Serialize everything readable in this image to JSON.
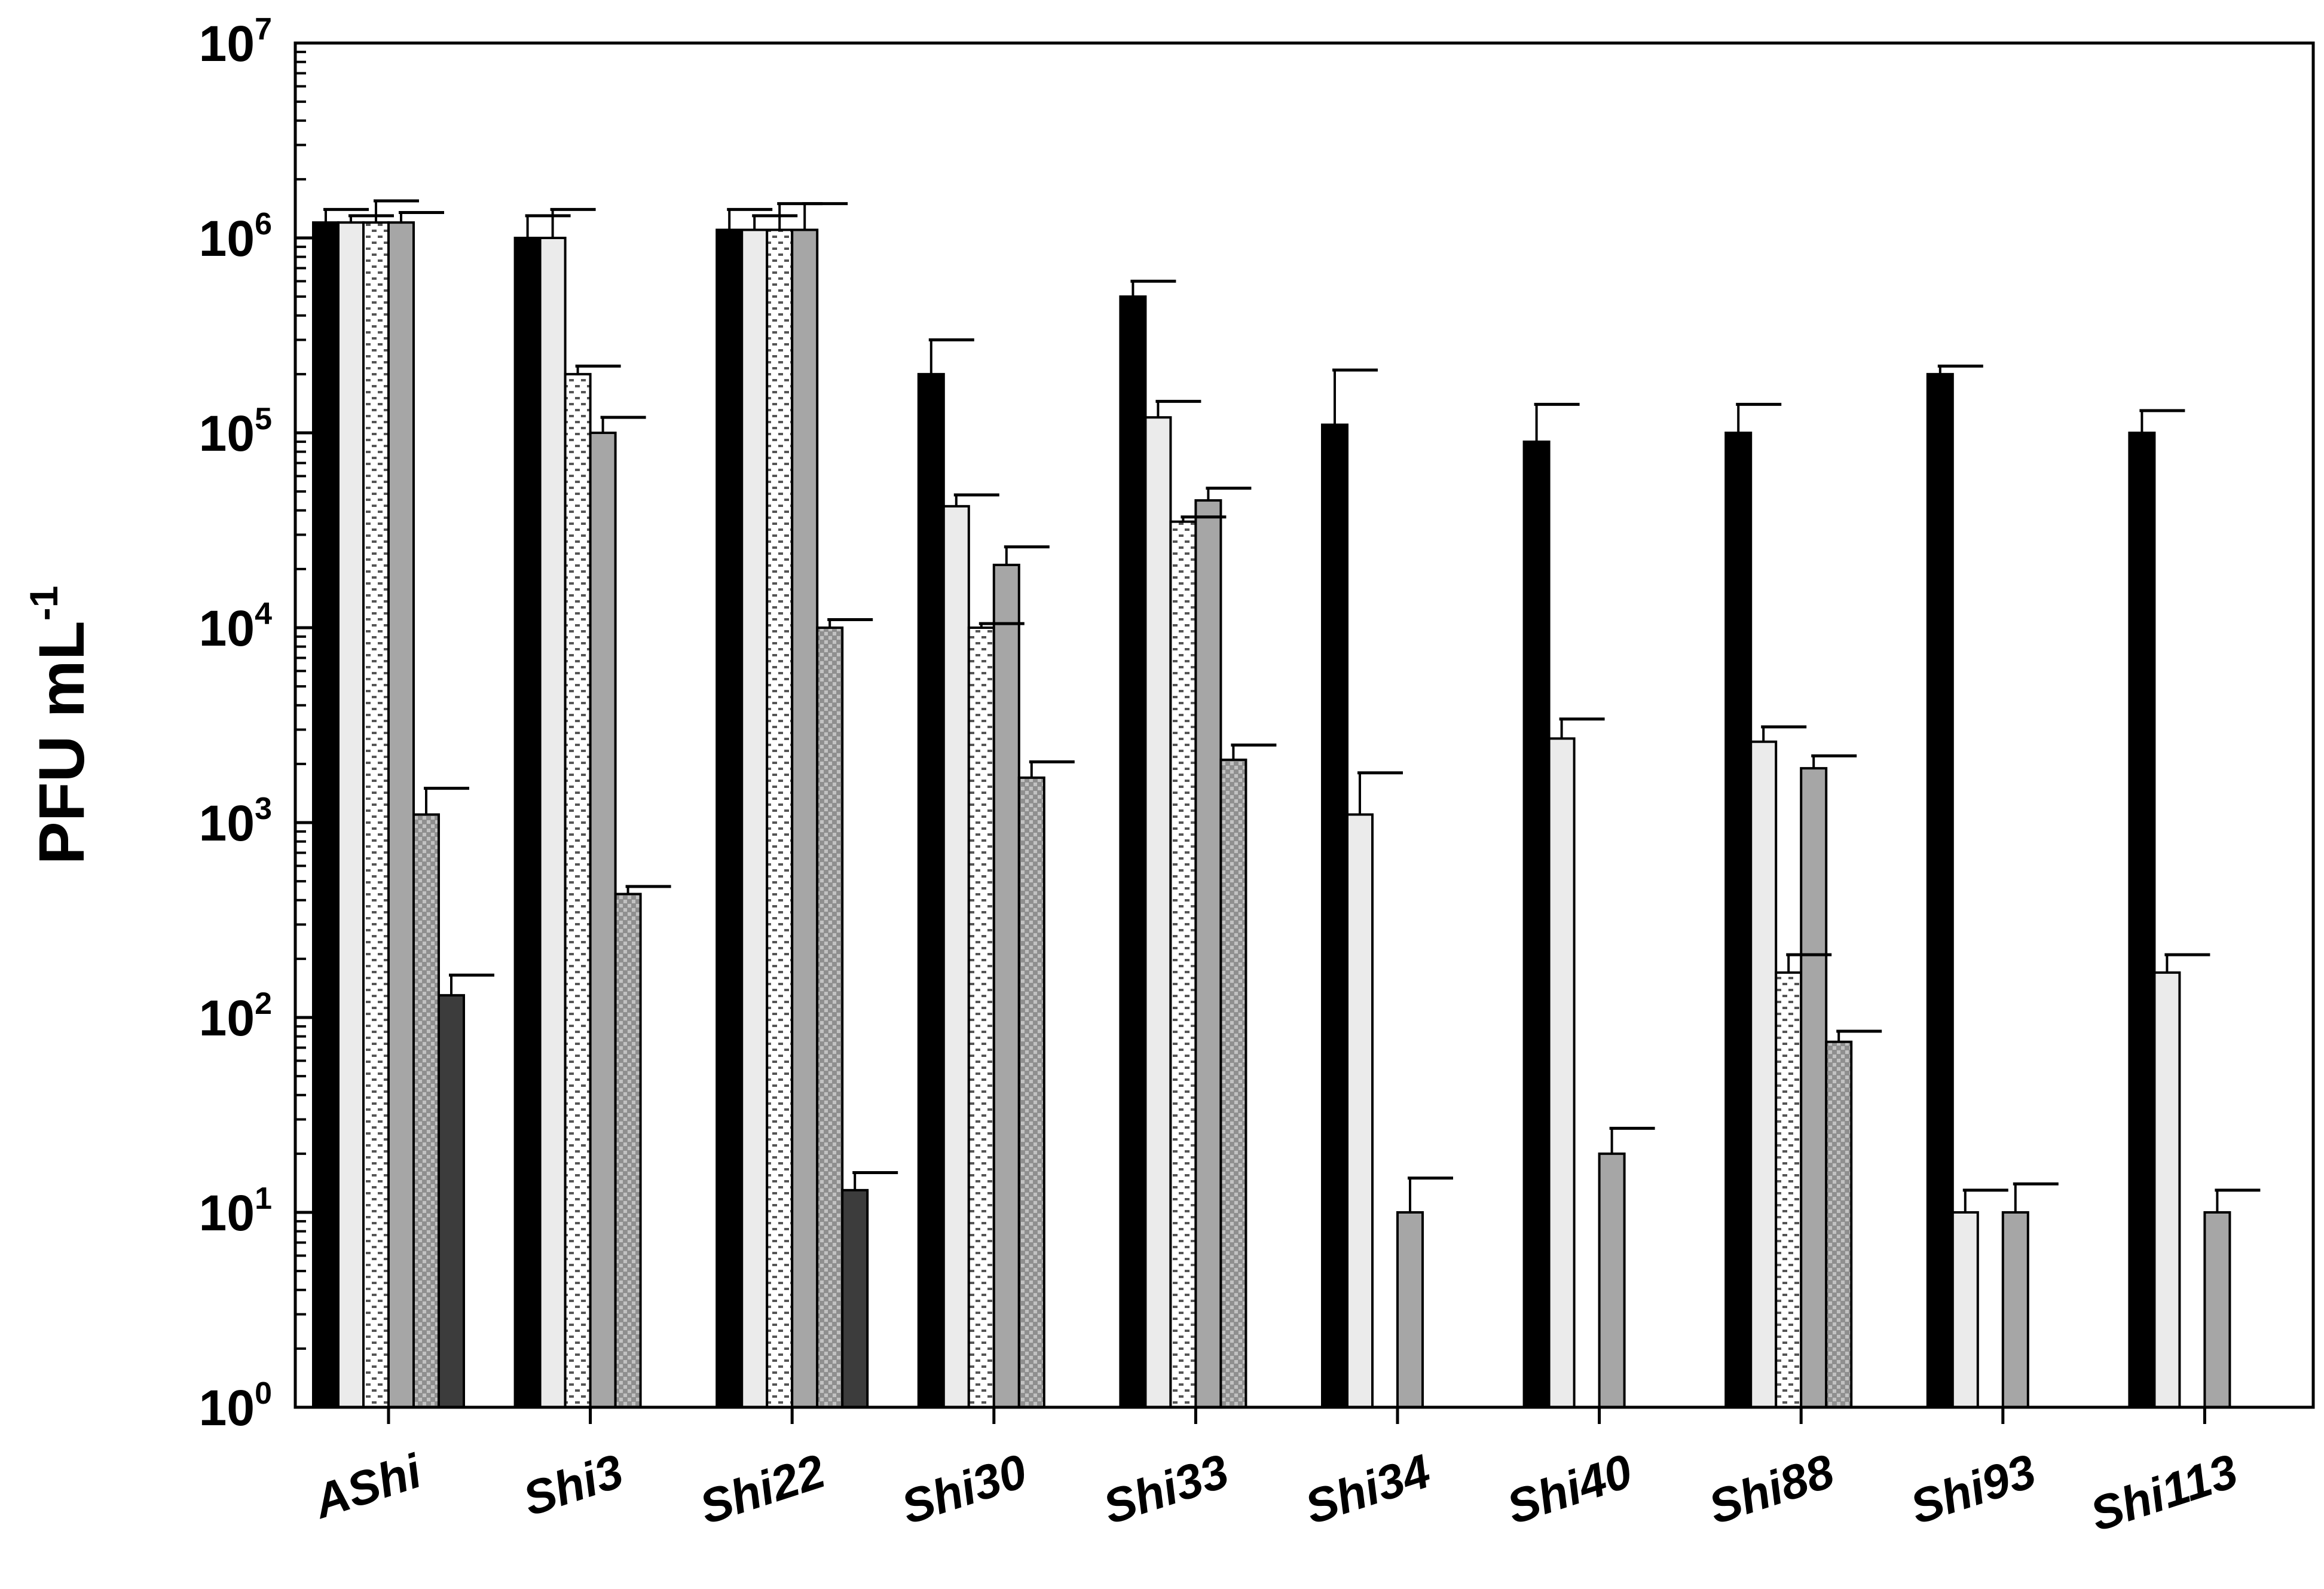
{
  "chart_data": {
    "type": "bar",
    "ylabel": "PFU mL",
    "ylabel_superscript": "-1",
    "yscale": "log",
    "ylim": [
      1,
      10000000
    ],
    "yticks": [
      {
        "base": "10",
        "exp": "0"
      },
      {
        "base": "10",
        "exp": "1"
      },
      {
        "base": "10",
        "exp": "2"
      },
      {
        "base": "10",
        "exp": "3"
      },
      {
        "base": "10",
        "exp": "4"
      },
      {
        "base": "10",
        "exp": "5"
      },
      {
        "base": "10",
        "exp": "6"
      },
      {
        "base": "10",
        "exp": "7"
      }
    ],
    "categories": [
      "AShi",
      "Shi3",
      "Shi22",
      "Shi30",
      "Shi33",
      "Shi34",
      "Shi40",
      "Shi88",
      "Shi93",
      "Shi113"
    ],
    "series": [
      {
        "fill": "#000000",
        "pattern": "solid",
        "values": [
          1200000,
          1000000,
          1100000,
          200000,
          500000,
          110000,
          90000,
          100000,
          200000,
          100000
        ],
        "errors": [
          1400000,
          1300000,
          1400000,
          300000,
          600000,
          210000,
          140000,
          140000,
          220000,
          130000
        ]
      },
      {
        "fill": "#ebebeb",
        "pattern": "solid",
        "values": [
          1200000,
          1000000,
          1100000,
          42000,
          120000,
          1100,
          2700,
          2600,
          10,
          170
        ],
        "errors": [
          1300000,
          1400000,
          1300000,
          48000,
          145000,
          1800,
          3400,
          3100,
          13,
          210
        ]
      },
      {
        "fill": "#ffffff",
        "pattern": "dots",
        "values": [
          1200000,
          200000,
          1100000,
          10000,
          35000,
          null,
          null,
          170,
          null,
          null
        ],
        "errors": [
          1550000,
          220000,
          1500000,
          10500,
          37000,
          null,
          null,
          210,
          null,
          null
        ]
      },
      {
        "fill": "#a6a6a6",
        "pattern": "solid",
        "values": [
          1200000,
          100000,
          1100000,
          21000,
          45000,
          10,
          20,
          1900,
          10,
          10
        ],
        "errors": [
          1350000,
          120000,
          1500000,
          26000,
          52000,
          15,
          27,
          2200,
          14,
          13
        ]
      },
      {
        "fill": "#a6a6a6",
        "pattern": "crosshatch",
        "values": [
          1100,
          430,
          10000,
          1700,
          2100,
          null,
          null,
          75,
          null,
          null
        ],
        "errors": [
          1500,
          470,
          11000,
          2050,
          2500,
          null,
          null,
          85,
          null,
          null
        ]
      },
      {
        "fill": "#3c3c3c",
        "pattern": "solid",
        "values": [
          130,
          null,
          13,
          null,
          null,
          null,
          null,
          null,
          null,
          null
        ],
        "errors": [
          165,
          null,
          16,
          null,
          null,
          null,
          null,
          null,
          null,
          null
        ]
      }
    ],
    "grid": false,
    "legend": "none"
  }
}
